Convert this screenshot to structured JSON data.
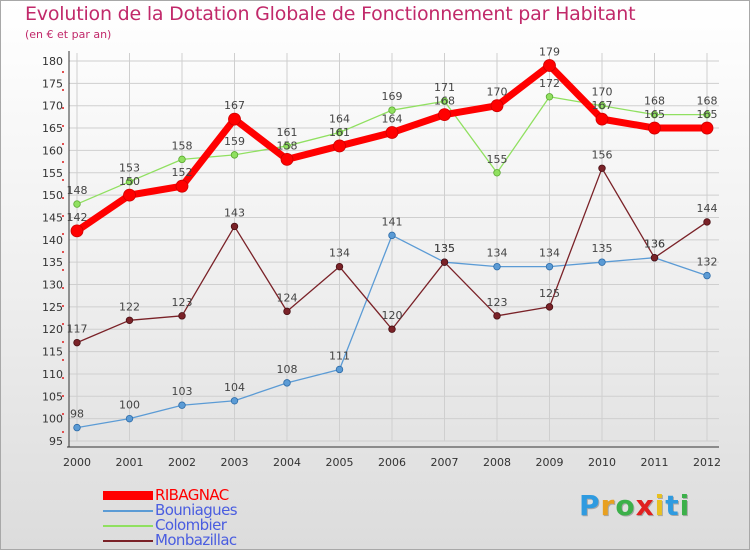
{
  "chart_data": {
    "type": "line",
    "title": "Evolution de la Dotation Globale de Fonctionnement par Habitant",
    "subtitle": "(en € et par an)",
    "xlabel": "",
    "ylabel": "",
    "categories": [
      "2000",
      "2001",
      "2002",
      "2003",
      "2004",
      "2005",
      "2006",
      "2007",
      "2008",
      "2009",
      "2010",
      "2011",
      "2012"
    ],
    "ylim": [
      95,
      180
    ],
    "yticks": [
      95,
      100,
      105,
      110,
      115,
      120,
      125,
      130,
      135,
      140,
      145,
      150,
      155,
      160,
      165,
      170,
      175,
      180
    ],
    "grid": true,
    "legend_position": "bottom-left",
    "series": [
      {
        "name": "RIBAGNAC",
        "color": "#ff0000",
        "values": [
          142,
          150,
          152,
          167,
          158,
          161,
          164,
          168,
          170,
          179,
          167,
          165,
          165
        ]
      },
      {
        "name": "Bouniagues",
        "color": "#5b9bd5",
        "values": [
          98,
          100,
          103,
          104,
          108,
          111,
          141,
          135,
          134,
          134,
          135,
          136,
          132
        ]
      },
      {
        "name": "Colombier",
        "color": "#90e060",
        "values": [
          148,
          153,
          158,
          159,
          161,
          164,
          169,
          171,
          155,
          172,
          170,
          168,
          168
        ]
      },
      {
        "name": "Monbazillac",
        "color": "#7a2228",
        "values": [
          117,
          122,
          123,
          143,
          124,
          134,
          120,
          135,
          123,
          125,
          156,
          136,
          144
        ]
      }
    ]
  },
  "legend": {
    "items": [
      {
        "label": "RIBAGNAC",
        "color": "#ff0000"
      },
      {
        "label": "Bouniagues",
        "color": "#5b9bd5"
      },
      {
        "label": "Colombier",
        "color": "#90e060"
      },
      {
        "label": "Monbazillac",
        "color": "#7a2228"
      }
    ]
  },
  "logo": {
    "letters": [
      "P",
      "r",
      "o",
      "x",
      "i",
      "t",
      "i"
    ],
    "colors": [
      "#2f9be0",
      "#e8a020",
      "#3cb04a",
      "#e02020",
      "#e8c020",
      "#2f9be0",
      "#3cb04a"
    ]
  }
}
